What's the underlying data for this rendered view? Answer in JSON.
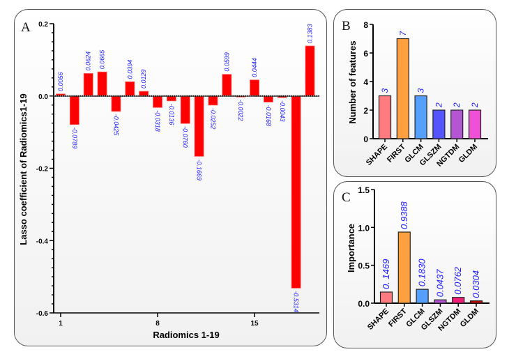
{
  "chart_data": [
    {
      "panel": "A",
      "type": "bar",
      "title": "",
      "xlabel": "Radiomics 1-19",
      "ylabel": "Lasso coefficient of Radiomics1-19",
      "ylim": [
        -0.6,
        0.2
      ],
      "yticks": [
        "0.2",
        "0.0",
        "-0.2",
        "-0.4",
        "-0.6"
      ],
      "ytick_values": [
        0.2,
        0.0,
        -0.2,
        -0.4,
        -0.6
      ],
      "xticks": [
        "1",
        "8",
        "15"
      ],
      "xtick_positions": [
        1,
        8,
        15
      ],
      "categories": [
        "1",
        "2",
        "3",
        "4",
        "5",
        "6",
        "7",
        "8",
        "9",
        "10",
        "11",
        "12",
        "13",
        "14",
        "15",
        "16",
        "17",
        "18",
        "19"
      ],
      "values": [
        0.0056,
        -0.0789,
        0.0624,
        0.0665,
        -0.0425,
        0.0394,
        0.0129,
        -0.0318,
        -0.0136,
        -0.076,
        -0.1669,
        -0.0252,
        0.0599,
        -0.0022,
        0.0444,
        -0.0168,
        -0.0043,
        -0.5314,
        0.1383
      ],
      "data_labels": [
        "0.0056",
        "-0.0789",
        "0.0624",
        "0.0665",
        "-0.0425",
        "0.0394",
        "0.0129",
        "-0.0318",
        "-0.0136",
        "-0.0760",
        "-0.1669",
        "-0.0252",
        "0.0599",
        "-0.0022",
        "0.0444",
        "-0.0168",
        "-0.0043",
        "-0.5314",
        "0.1383"
      ],
      "bar_color": "#ff0000",
      "label_color": "#1a1aff",
      "grid": false
    },
    {
      "panel": "B",
      "type": "bar",
      "title": "",
      "xlabel": "",
      "ylabel": "Number of features",
      "ylim": [
        0,
        8
      ],
      "yticks": [
        "0",
        "2",
        "4",
        "6",
        "8"
      ],
      "ytick_values": [
        0,
        2,
        4,
        6,
        8
      ],
      "categories": [
        "SHAPE",
        "FIRST",
        "GLCM",
        "GLSZM",
        "NGTDM",
        "GLDM"
      ],
      "values": [
        3,
        7,
        3,
        2,
        2,
        2
      ],
      "data_labels": [
        "3",
        "7",
        "3",
        "2",
        "2",
        "2"
      ],
      "colors": [
        "#ff7b80",
        "#ffa040",
        "#55a0ff",
        "#5555ff",
        "#b455d4",
        "#f050d8"
      ],
      "label_color": "#1a1aff",
      "grid": false
    },
    {
      "panel": "C",
      "type": "bar",
      "title": "",
      "xlabel": "",
      "ylabel": "Importance",
      "ylim": [
        0,
        1.5
      ],
      "yticks": [
        "0.0",
        "0.5",
        "1.0",
        "1.5"
      ],
      "ytick_values": [
        0,
        0.5,
        1.0,
        1.5
      ],
      "categories": [
        "SHAPE",
        "FIRST",
        "GLCM",
        "GLSZM",
        "NGTDM",
        "GLDM"
      ],
      "values": [
        0.1469,
        0.9388,
        0.183,
        0.0437,
        0.0762,
        0.0304
      ],
      "data_labels": [
        "0. 1469",
        "0.9388",
        "0.1830",
        "0.0437",
        "0.0762",
        "0.0304"
      ],
      "colors": [
        "#ff7b80",
        "#ffa040",
        "#55a0ff",
        "#b455d4",
        "#f0207a",
        "#d40000"
      ],
      "label_color": "#1a1aff",
      "grid": false
    }
  ],
  "panels": {
    "a_letter": "A",
    "b_letter": "B",
    "c_letter": "C"
  }
}
